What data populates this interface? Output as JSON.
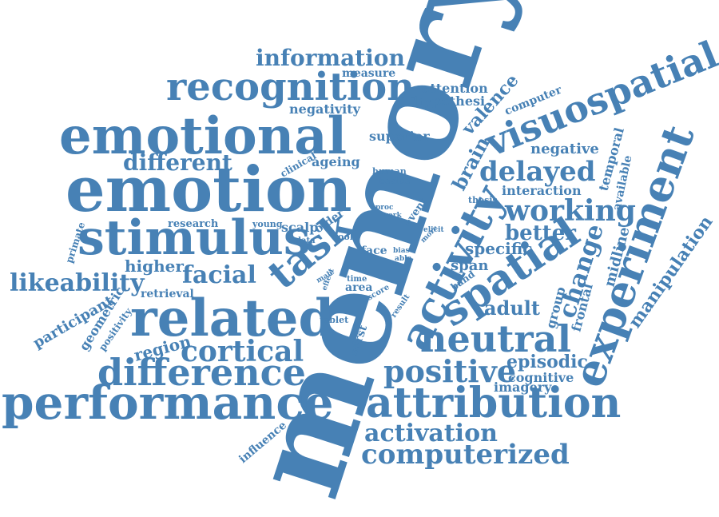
{
  "colors": {
    "word": "#4781b5",
    "background": "#ffffff"
  },
  "words": [
    "memory",
    "emotion",
    "emotional",
    "stimulus",
    "related",
    "performance",
    "recognition",
    "attribution",
    "visuospatial",
    "experiment",
    "activity",
    "spatial",
    "neutral",
    "difference",
    "cortical",
    "positive",
    "working",
    "delayed",
    "task",
    "computerized",
    "activation",
    "information",
    "likeability",
    "facial",
    "different",
    "better",
    "change",
    "adult",
    "episodic",
    "manipulation",
    "brain",
    "valence",
    "negative",
    "specific",
    "higher",
    "region",
    "participant",
    "geometric",
    "positivity",
    "imagery",
    "cognitive",
    "midline",
    "frontal",
    "group",
    "span",
    "temporal",
    "available",
    "interaction",
    "computer",
    "attention",
    "hypothesi",
    "measure",
    "negativity",
    "superior",
    "ageing",
    "clinical",
    "human",
    "beside",
    "research",
    "young",
    "scalp",
    "older",
    "tool",
    "data",
    "face",
    "area",
    "time",
    "score",
    "result",
    "event",
    "work",
    "proc",
    "thesis",
    "elicit",
    "more",
    "bias",
    "able",
    "effect",
    "male",
    "influence",
    "tablet",
    "sdrst",
    "primate",
    "retrieval",
    "band"
  ]
}
